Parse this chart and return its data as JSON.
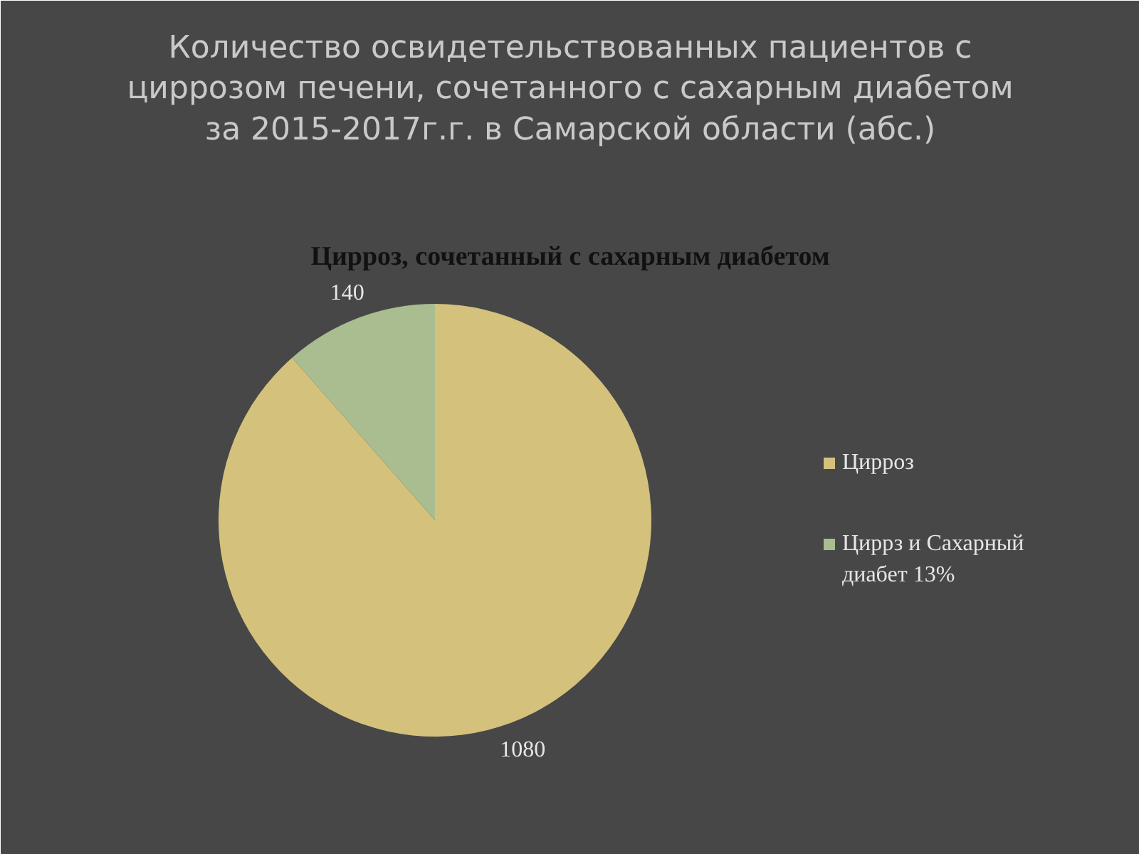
{
  "chart_data": {
    "type": "pie",
    "title": "Количество освидетельствованных пациентов с циррозом печени, сочетанного с сахарным диабетом за 2015-2017г.г. в Самарской области (абс.)",
    "subtitle": "Цирроз, сочетанный с сахарным диабетом",
    "categories": [
      "Цирроз",
      "Циррз и Сахарный диабет 13%"
    ],
    "values": [
      1080,
      140
    ],
    "colors": [
      "#d4c27c",
      "#a9bd91"
    ],
    "data_labels": true,
    "legend": "right"
  }
}
